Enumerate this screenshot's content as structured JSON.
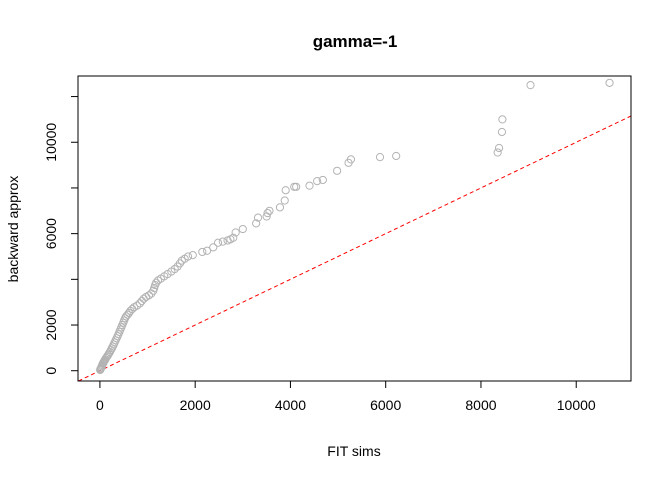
{
  "chart_data": {
    "type": "scatter",
    "title": "gamma=-1",
    "xlabel": "FIT sims",
    "ylabel": "backward approx",
    "xlim": [
      -460,
      11150
    ],
    "ylim": [
      -450,
      12900
    ],
    "x_ticks": [
      0,
      2000,
      4000,
      6000,
      8000,
      10000
    ],
    "x_tick_labels": [
      "0",
      "2000",
      "4000",
      "6000",
      "8000",
      "10000"
    ],
    "y_ticks": [
      0,
      2000,
      6000,
      10000
    ],
    "y_tick_labels": [
      "0",
      "2000",
      "6000",
      "10000"
    ],
    "y_minor_ticks": [
      4000,
      8000,
      12000
    ],
    "grid": false,
    "legend": "none",
    "point_color": "#b3b3b3",
    "reference_line": {
      "slope": 1,
      "intercept": 0,
      "color": "#ff0000",
      "style": "dashed"
    },
    "series": [
      {
        "points": [
          [
            5,
            30
          ],
          [
            10,
            60
          ],
          [
            20,
            100
          ],
          [
            30,
            150
          ],
          [
            40,
            200
          ],
          [
            50,
            250
          ],
          [
            60,
            300
          ],
          [
            70,
            340
          ],
          [
            80,
            380
          ],
          [
            90,
            420
          ],
          [
            100,
            460
          ],
          [
            115,
            500
          ],
          [
            130,
            560
          ],
          [
            150,
            620
          ],
          [
            170,
            680
          ],
          [
            190,
            750
          ],
          [
            210,
            820
          ],
          [
            230,
            900
          ],
          [
            250,
            980
          ],
          [
            270,
            1060
          ],
          [
            290,
            1150
          ],
          [
            310,
            1240
          ],
          [
            330,
            1330
          ],
          [
            350,
            1420
          ],
          [
            370,
            1510
          ],
          [
            390,
            1600
          ],
          [
            410,
            1700
          ],
          [
            430,
            1800
          ],
          [
            450,
            1900
          ],
          [
            470,
            2000
          ],
          [
            490,
            2100
          ],
          [
            510,
            2200
          ],
          [
            530,
            2300
          ],
          [
            550,
            2380
          ],
          [
            580,
            2450
          ],
          [
            610,
            2530
          ],
          [
            640,
            2620
          ],
          [
            680,
            2700
          ],
          [
            720,
            2780
          ],
          [
            780,
            2850
          ],
          [
            840,
            2950
          ],
          [
            880,
            3050
          ],
          [
            920,
            3150
          ],
          [
            970,
            3230
          ],
          [
            1030,
            3300
          ],
          [
            1080,
            3380
          ],
          [
            1120,
            3500
          ],
          [
            1140,
            3620
          ],
          [
            1160,
            3750
          ],
          [
            1180,
            3850
          ],
          [
            1220,
            3950
          ],
          [
            1280,
            4030
          ],
          [
            1350,
            4130
          ],
          [
            1420,
            4230
          ],
          [
            1500,
            4340
          ],
          [
            1570,
            4450
          ],
          [
            1630,
            4560
          ],
          [
            1680,
            4700
          ],
          [
            1720,
            4820
          ],
          [
            1780,
            4900
          ],
          [
            1850,
            5000
          ],
          [
            1950,
            5060
          ],
          [
            2150,
            5200
          ],
          [
            2250,
            5250
          ],
          [
            2380,
            5400
          ],
          [
            2480,
            5600
          ],
          [
            2580,
            5650
          ],
          [
            2680,
            5700
          ],
          [
            2740,
            5750
          ],
          [
            2800,
            5820
          ],
          [
            2850,
            6050
          ],
          [
            3000,
            6200
          ],
          [
            3280,
            6450
          ],
          [
            3320,
            6700
          ],
          [
            3500,
            6750
          ],
          [
            3520,
            6900
          ],
          [
            3560,
            7000
          ],
          [
            3780,
            7150
          ],
          [
            3880,
            7450
          ],
          [
            3900,
            7900
          ],
          [
            4080,
            8050
          ],
          [
            4120,
            8050
          ],
          [
            4400,
            8100
          ],
          [
            4560,
            8300
          ],
          [
            4680,
            8350
          ],
          [
            4980,
            8750
          ],
          [
            5220,
            9100
          ],
          [
            5270,
            9250
          ],
          [
            5880,
            9350
          ],
          [
            6220,
            9400
          ],
          [
            8350,
            9550
          ],
          [
            8380,
            9750
          ],
          [
            8440,
            10450
          ],
          [
            8450,
            11000
          ],
          [
            9040,
            12500
          ],
          [
            10700,
            12600
          ]
        ]
      }
    ]
  }
}
